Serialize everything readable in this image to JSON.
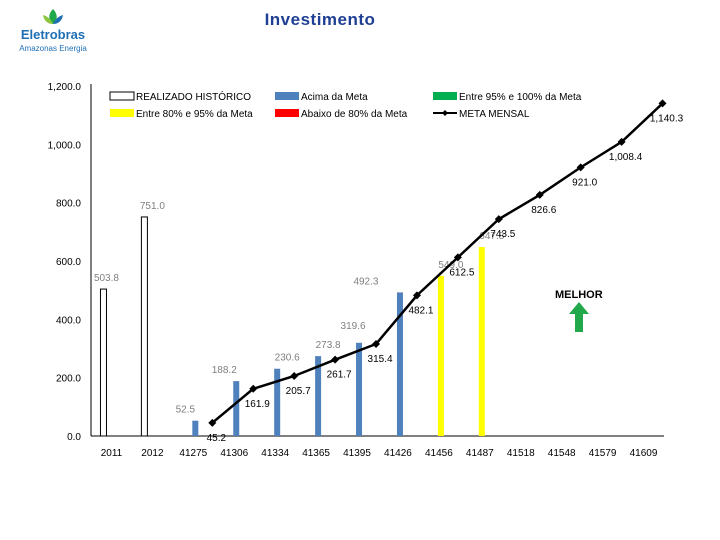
{
  "header": {
    "title": "Investimento",
    "logo_name": "Eletrobras",
    "logo_tagline": "Amazonas Energia"
  },
  "annotation": {
    "label": "MELHOR",
    "icon": "up-arrow-icon",
    "color": "#21a84a"
  },
  "chart_data": {
    "type": "bar",
    "categories": [
      "2011",
      "2012",
      "41275",
      "41306",
      "41334",
      "41365",
      "41395",
      "41426",
      "41456",
      "41487",
      "41518",
      "41548",
      "41579",
      "41609"
    ],
    "y_ticks": [
      "0.0",
      "200.0",
      "400.0",
      "600.0",
      "800.0",
      "1,000.0",
      "1,200.0"
    ],
    "ylim": [
      0,
      1200
    ],
    "legend": [
      {
        "label": "REALIZADO HISTÓRICO",
        "kind": "bar",
        "color": "#ffffff",
        "border": "#000000"
      },
      {
        "label": "Acima da Meta",
        "kind": "bar",
        "color": "#4f81bd"
      },
      {
        "label": "Entre 95% e 100% da Meta",
        "kind": "bar",
        "color": "#00b050"
      },
      {
        "label": "Entre 80% e 95% da Meta",
        "kind": "bar",
        "color": "#ffff00"
      },
      {
        "label": "Abaixo de 80% da Meta",
        "kind": "bar",
        "color": "#ff0000"
      },
      {
        "label": "META MENSAL",
        "kind": "line",
        "color": "#000000"
      }
    ],
    "bars": [
      {
        "value": 503.8,
        "label": "503.8",
        "color": "#ffffff",
        "border": "#000000"
      },
      {
        "value": 751.0,
        "label": "751.0",
        "color": "#ffffff",
        "border": "#000000"
      },
      {
        "value": 52.5,
        "label": "52.5",
        "color": "#4f81bd"
      },
      {
        "value": 188.2,
        "label": "188.2",
        "color": "#4f81bd"
      },
      {
        "value": 230.6,
        "label": "230.6",
        "color": "#4f81bd"
      },
      {
        "value": 273.8,
        "label": "273.8",
        "color": "#4f81bd"
      },
      {
        "value": 319.6,
        "label": "319.6",
        "color": "#4f81bd"
      },
      {
        "value": 492.3,
        "label": "492.3",
        "color": "#4f81bd"
      },
      {
        "value": 549.0,
        "label": "549.0",
        "color": "#ffff00"
      },
      {
        "value": 647.8,
        "label": "647.8",
        "color": "#ffff00"
      }
    ],
    "meta_mensal": [
      {
        "category": "41275",
        "value": 45.2,
        "label": "45.2"
      },
      {
        "category": "41306",
        "value": 161.9,
        "label": "161.9"
      },
      {
        "category": "41334",
        "value": 205.7,
        "label": "205.7"
      },
      {
        "category": "41365",
        "value": 261.7,
        "label": "261.7"
      },
      {
        "category": "41395",
        "value": 315.4,
        "label": "315.4"
      },
      {
        "category": "41426",
        "value": 482.1,
        "label": "482.1"
      },
      {
        "category": "41456",
        "value": 612.5,
        "label": "612.5"
      },
      {
        "category": "41487",
        "value": 743.5,
        "label": "743.5"
      },
      {
        "category": "41518",
        "value": 826.6,
        "label": "826.6"
      },
      {
        "category": "41548",
        "value": 921.0,
        "label": "921.0"
      },
      {
        "category": "41579",
        "value": 1008.4,
        "label": "1,008.4"
      },
      {
        "category": "41609",
        "value": 1140.3,
        "label": "1,140.3"
      }
    ]
  }
}
